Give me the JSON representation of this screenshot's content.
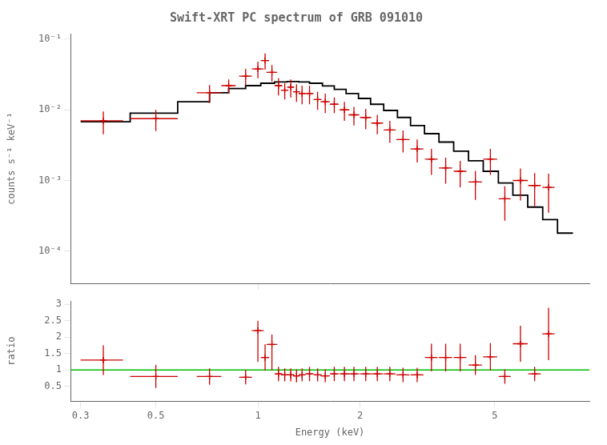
{
  "chart_data": [
    {
      "type": "scatter",
      "title": "Swift-XRT PC spectrum of GRB 091010",
      "ylabel": "counts s⁻¹ keV⁻¹",
      "log": true,
      "grid": false,
      "tick_labels": "y",
      "xlim": [
        0.28,
        9.5
      ],
      "ylim": [
        3.5e-05,
        0.12
      ],
      "xticks": [
        1
      ],
      "yticks": [
        {
          "value": 0.0001,
          "label": "10⁻⁴"
        },
        {
          "value": 0.001,
          "label": "10⁻³"
        },
        {
          "value": 0.01,
          "label": "10⁻²"
        },
        {
          "value": 0.1,
          "label": "10⁻¹"
        }
      ],
      "series": [
        {
          "type": "line",
          "color": "#000000",
          "x": [
            0.3,
            0.42,
            0.42,
            0.58,
            0.58,
            0.72,
            0.72,
            0.82,
            0.82,
            0.92,
            0.92,
            1.02,
            1.02,
            1.12,
            1.12,
            1.22,
            1.22,
            1.32,
            1.32,
            1.42,
            1.42,
            1.55,
            1.55,
            1.68,
            1.68,
            1.82,
            1.82,
            1.98,
            1.98,
            2.15,
            2.15,
            2.35,
            2.35,
            2.58,
            2.58,
            2.82,
            2.82,
            3.1,
            3.1,
            3.42,
            3.42,
            3.78,
            3.78,
            4.18,
            4.18,
            4.62,
            4.62,
            5.12,
            5.12,
            5.65,
            5.65,
            6.25,
            6.25,
            6.92,
            6.92,
            7.65,
            7.65,
            8.5
          ],
          "values": [
            0.0068,
            0.0068,
            0.009,
            0.009,
            0.013,
            0.013,
            0.0175,
            0.0175,
            0.02,
            0.02,
            0.022,
            0.022,
            0.0238,
            0.0238,
            0.0248,
            0.0248,
            0.0252,
            0.0252,
            0.0248,
            0.0248,
            0.0238,
            0.0238,
            0.0218,
            0.0218,
            0.0195,
            0.0195,
            0.017,
            0.017,
            0.0145,
            0.0145,
            0.012,
            0.012,
            0.0098,
            0.0098,
            0.0078,
            0.0078,
            0.006,
            0.006,
            0.0046,
            0.0046,
            0.0035,
            0.0035,
            0.0026,
            0.0026,
            0.0019,
            0.0019,
            0.00135,
            0.00135,
            0.00092,
            0.00092,
            0.00062,
            0.00062,
            0.00042,
            0.00042,
            0.00028,
            0.00028,
            0.00018,
            0.00018
          ]
        },
        {
          "type": "scatter",
          "color": "#cc0000",
          "marker": "plus",
          "x": [
            0.35,
            0.5,
            0.72,
            0.82,
            0.92,
            1.0,
            1.05,
            1.1,
            1.15,
            1.2,
            1.25,
            1.3,
            1.35,
            1.42,
            1.5,
            1.58,
            1.68,
            1.8,
            1.92,
            2.08,
            2.25,
            2.45,
            2.68,
            2.95,
            3.25,
            3.58,
            3.95,
            4.38,
            4.85,
            5.35,
            5.95,
            6.55,
            7.2
          ],
          "values": [
            0.007,
            0.0075,
            0.0175,
            0.022,
            0.03,
            0.038,
            0.05,
            0.034,
            0.022,
            0.019,
            0.021,
            0.018,
            0.017,
            0.017,
            0.014,
            0.013,
            0.012,
            0.01,
            0.0085,
            0.0078,
            0.0065,
            0.0052,
            0.0038,
            0.0028,
            0.002,
            0.0015,
            0.00135,
            0.00095,
            0.002,
            0.00055,
            0.001,
            0.00085,
            0.0008
          ],
          "xerr_lo": [
            0.05,
            0.08,
            0.06,
            0.04,
            0.04,
            0.04,
            0.03,
            0.04,
            0.03,
            0.03,
            0.03,
            0.03,
            0.03,
            0.04,
            0.04,
            0.05,
            0.05,
            0.06,
            0.07,
            0.08,
            0.09,
            0.1,
            0.12,
            0.13,
            0.14,
            0.16,
            0.17,
            0.2,
            0.23,
            0.22,
            0.3,
            0.28,
            0.3
          ],
          "xerr_hi": [
            0.05,
            0.08,
            0.06,
            0.04,
            0.04,
            0.04,
            0.03,
            0.04,
            0.03,
            0.03,
            0.03,
            0.03,
            0.03,
            0.04,
            0.04,
            0.05,
            0.05,
            0.06,
            0.07,
            0.08,
            0.09,
            0.1,
            0.12,
            0.13,
            0.14,
            0.16,
            0.17,
            0.2,
            0.23,
            0.22,
            0.3,
            0.28,
            0.3
          ],
          "yerr_lo": [
            0.0025,
            0.0025,
            0.005,
            0.005,
            0.008,
            0.01,
            0.013,
            0.009,
            0.006,
            0.005,
            0.006,
            0.005,
            0.005,
            0.005,
            0.004,
            0.004,
            0.003,
            0.003,
            0.0025,
            0.0025,
            0.002,
            0.0018,
            0.0013,
            0.001,
            0.0008,
            0.0006,
            0.00055,
            0.00042,
            0.0008,
            0.00028,
            0.00048,
            0.00042,
            0.00045
          ],
          "yerr_hi": [
            0.0025,
            0.0025,
            0.005,
            0.005,
            0.008,
            0.01,
            0.013,
            0.009,
            0.006,
            0.005,
            0.006,
            0.005,
            0.005,
            0.005,
            0.004,
            0.004,
            0.003,
            0.003,
            0.0025,
            0.0025,
            0.002,
            0.0018,
            0.0013,
            0.001,
            0.0008,
            0.0006,
            0.00055,
            0.00042,
            0.0008,
            0.00028,
            0.00048,
            0.00042,
            0.00045
          ]
        }
      ]
    },
    {
      "type": "scatter",
      "xlabel": "Energy (keV)",
      "ylabel": "ratio",
      "log": "x",
      "grid": false,
      "xlim": [
        0.28,
        9.5
      ],
      "ylim": [
        0.05,
        3.1
      ],
      "xticks": [
        0.3,
        0.5,
        1,
        2,
        5
      ],
      "yticks": [
        0.5,
        1,
        1.5,
        2,
        2.5,
        3
      ],
      "series": [
        {
          "type": "hline",
          "color": "#00bb00",
          "y": 1.0
        },
        {
          "type": "scatter",
          "color": "#cc0000",
          "marker": "plus",
          "x": [
            0.35,
            0.5,
            0.72,
            0.92,
            1.0,
            1.05,
            1.1,
            1.15,
            1.2,
            1.25,
            1.3,
            1.35,
            1.42,
            1.5,
            1.58,
            1.68,
            1.8,
            1.92,
            2.08,
            2.25,
            2.45,
            2.68,
            2.95,
            3.25,
            3.58,
            3.95,
            4.38,
            4.85,
            5.35,
            5.95,
            6.55,
            7.2
          ],
          "values": [
            1.3,
            0.8,
            0.8,
            0.78,
            2.2,
            1.38,
            1.78,
            0.88,
            0.85,
            0.85,
            0.82,
            0.85,
            0.88,
            0.85,
            0.82,
            0.88,
            0.88,
            0.88,
            0.88,
            0.88,
            0.88,
            0.85,
            0.85,
            1.38,
            1.38,
            1.38,
            1.15,
            1.4,
            0.8,
            1.8,
            0.88,
            2.1
          ],
          "xerr_lo": [
            0.05,
            0.08,
            0.06,
            0.04,
            0.04,
            0.03,
            0.04,
            0.03,
            0.03,
            0.03,
            0.03,
            0.03,
            0.04,
            0.04,
            0.05,
            0.05,
            0.06,
            0.07,
            0.08,
            0.09,
            0.1,
            0.12,
            0.13,
            0.14,
            0.16,
            0.17,
            0.2,
            0.23,
            0.22,
            0.3,
            0.28,
            0.3
          ],
          "xerr_hi": [
            0.05,
            0.08,
            0.06,
            0.04,
            0.04,
            0.03,
            0.04,
            0.03,
            0.03,
            0.03,
            0.03,
            0.03,
            0.04,
            0.04,
            0.05,
            0.05,
            0.06,
            0.07,
            0.08,
            0.09,
            0.1,
            0.12,
            0.13,
            0.14,
            0.16,
            0.17,
            0.2,
            0.23,
            0.22,
            0.3,
            0.28,
            0.3
          ],
          "yerr_lo": [
            0.45,
            0.35,
            0.25,
            0.22,
            0.95,
            0.4,
            0.78,
            0.22,
            0.2,
            0.2,
            0.2,
            0.2,
            0.22,
            0.2,
            0.2,
            0.22,
            0.22,
            0.22,
            0.22,
            0.22,
            0.22,
            0.22,
            0.22,
            0.42,
            0.42,
            0.42,
            0.3,
            0.42,
            0.22,
            0.55,
            0.22,
            0.8
          ],
          "yerr_hi": [
            0.45,
            0.35,
            0.25,
            0.22,
            0.3,
            0.4,
            0.3,
            0.22,
            0.2,
            0.2,
            0.2,
            0.2,
            0.22,
            0.2,
            0.2,
            0.22,
            0.22,
            0.22,
            0.22,
            0.22,
            0.22,
            0.22,
            0.22,
            0.42,
            0.42,
            0.42,
            0.3,
            0.42,
            0.22,
            0.55,
            0.22,
            0.8
          ]
        }
      ]
    }
  ]
}
